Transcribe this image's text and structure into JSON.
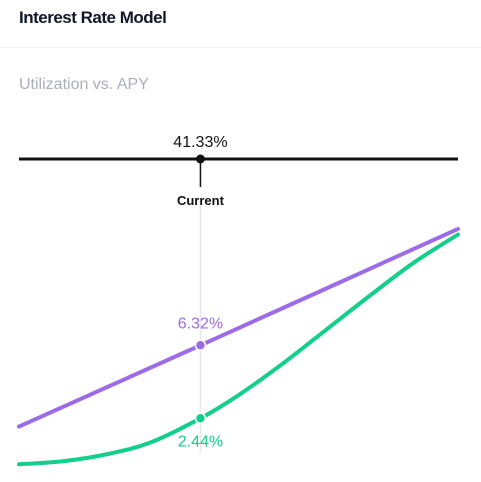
{
  "header": {
    "title": "Interest Rate Model"
  },
  "chart": {
    "subtitle": "Utilization vs. APY",
    "current_label": "Current"
  },
  "colors": {
    "borrow": "#9b6be8",
    "supply": "#12cf8a",
    "axis": "#111111",
    "marker_line": "#e5e7eb"
  },
  "chart_data": {
    "type": "line",
    "xlabel": "",
    "ylabel": "",
    "x_unit": "% utilization",
    "xlim": [
      0,
      100
    ],
    "current": {
      "utilization": 41.33,
      "utilization_label": "41.33%",
      "borrow_apy": 6.32,
      "borrow_label": "6.32%",
      "supply_apy": 2.44,
      "supply_label": "2.44%"
    },
    "series": [
      {
        "key": "borrow",
        "x": [
          0,
          41.33,
          100
        ],
        "values": [
          2.0,
          6.32,
          12.5
        ]
      },
      {
        "key": "supply",
        "x": [
          0,
          10,
          20,
          30,
          41.33,
          50,
          60,
          70,
          80,
          90,
          100
        ],
        "values": [
          0.0,
          0.16,
          0.53,
          1.16,
          2.44,
          3.67,
          5.33,
          7.15,
          8.97,
          10.72,
          12.2
        ]
      }
    ],
    "ylim": [
      -0.2,
      13.4
    ],
    "grid": false,
    "legend": "none"
  }
}
